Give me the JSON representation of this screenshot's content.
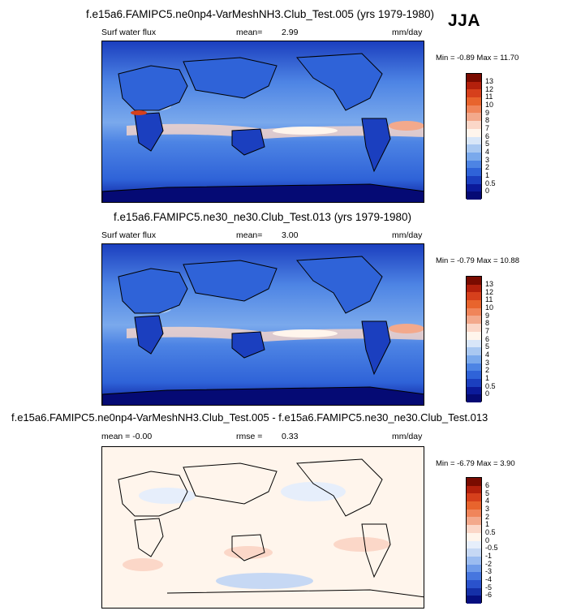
{
  "season": "JJA",
  "panels": [
    {
      "title": "f.e15a6.FAMIPC5.ne0np4-VarMeshNH3.Club_Test.005 (yrs 1979-1980)",
      "left_label": "Surf water flux",
      "stat_label": "mean=",
      "stat_value": "2.99",
      "units": "mm/day",
      "minmax": "Min =  -0.89 Max =  11.70",
      "colorbar_labels": [
        "13",
        "12",
        "11",
        "10",
        "9",
        "8",
        "7",
        "6",
        "5",
        "4",
        "3",
        "2",
        "1",
        "0.5",
        "0"
      ],
      "colorbar_colors": [
        "#7a0b00",
        "#b3200c",
        "#d6401c",
        "#e8642d",
        "#f0855a",
        "#f3a98c",
        "#fbd7c8",
        "#fff5ec",
        "#d8e6f8",
        "#a9c8f1",
        "#7aa9ec",
        "#4d84e4",
        "#2f63d8",
        "#1b3fbf",
        "#0b1a9a",
        "#050a74"
      ]
    },
    {
      "title": "f.e15a6.FAMIPC5.ne30_ne30.Club_Test.013 (yrs 1979-1980)",
      "left_label": "Surf water flux",
      "stat_label": "mean=",
      "stat_value": "3.00",
      "units": "mm/day",
      "minmax": "Min =  -0.79 Max =  10.88",
      "colorbar_labels": [
        "13",
        "12",
        "11",
        "10",
        "9",
        "8",
        "7",
        "6",
        "5",
        "4",
        "3",
        "2",
        "1",
        "0.5",
        "0"
      ],
      "colorbar_colors": [
        "#7a0b00",
        "#b3200c",
        "#d6401c",
        "#e8642d",
        "#f0855a",
        "#f3a98c",
        "#fbd7c8",
        "#fff5ec",
        "#d8e6f8",
        "#a9c8f1",
        "#7aa9ec",
        "#4d84e4",
        "#2f63d8",
        "#1b3fbf",
        "#0b1a9a",
        "#050a74"
      ]
    },
    {
      "title": "f.e15a6.FAMIPC5.ne0np4-VarMeshNH3.Club_Test.005 - f.e15a6.FAMIPC5.ne30_ne30.Club_Test.013",
      "left_label": "mean = -0.00",
      "stat_label": "rmse =",
      "stat_value": "0.33",
      "units": "mm/day",
      "minmax": "Min =  -6.79 Max =   3.90",
      "colorbar_labels": [
        "6",
        "5",
        "4",
        "3",
        "2",
        "1",
        "0.5",
        "0",
        "-0.5",
        "-1",
        "-2",
        "-3",
        "-4",
        "-5",
        "-6"
      ],
      "colorbar_colors": [
        "#7a0b00",
        "#b3200c",
        "#d6401c",
        "#e8642d",
        "#f0855a",
        "#f3a98c",
        "#fbd7c8",
        "#fff5ec",
        "#e6eefb",
        "#c6d8f4",
        "#9bbcf0",
        "#6f9be9",
        "#4676df",
        "#2a52cc",
        "#1530a8",
        "#060f80"
      ]
    }
  ]
}
